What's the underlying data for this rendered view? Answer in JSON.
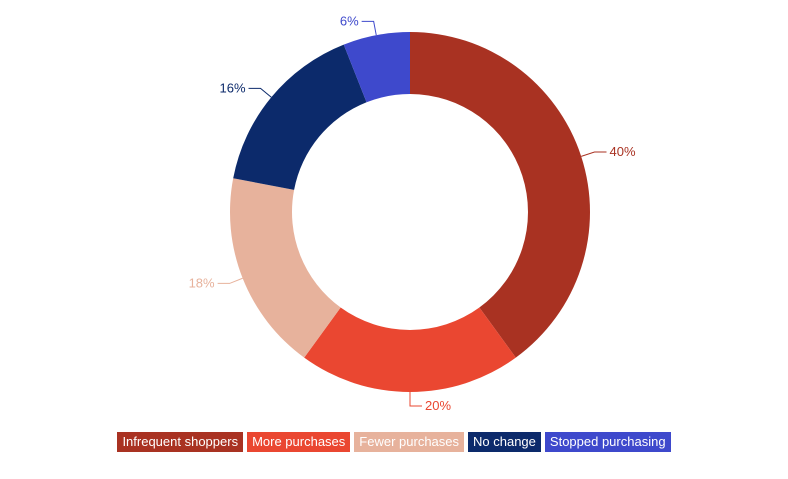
{
  "chart_data": {
    "type": "pie",
    "donut": true,
    "categories": [
      "Infrequent shoppers",
      "More purchases",
      "Fewer purchases",
      "No change",
      "Stopped purchasing"
    ],
    "values": [
      40,
      20,
      18,
      16,
      6
    ],
    "labels": [
      "40%",
      "20%",
      "18%",
      "16%",
      "6%"
    ],
    "colors": [
      "#A93222",
      "#EA4731",
      "#E7B29C",
      "#0C2A6B",
      "#3E49CC"
    ],
    "legend_placement": "bottom",
    "title": ""
  }
}
